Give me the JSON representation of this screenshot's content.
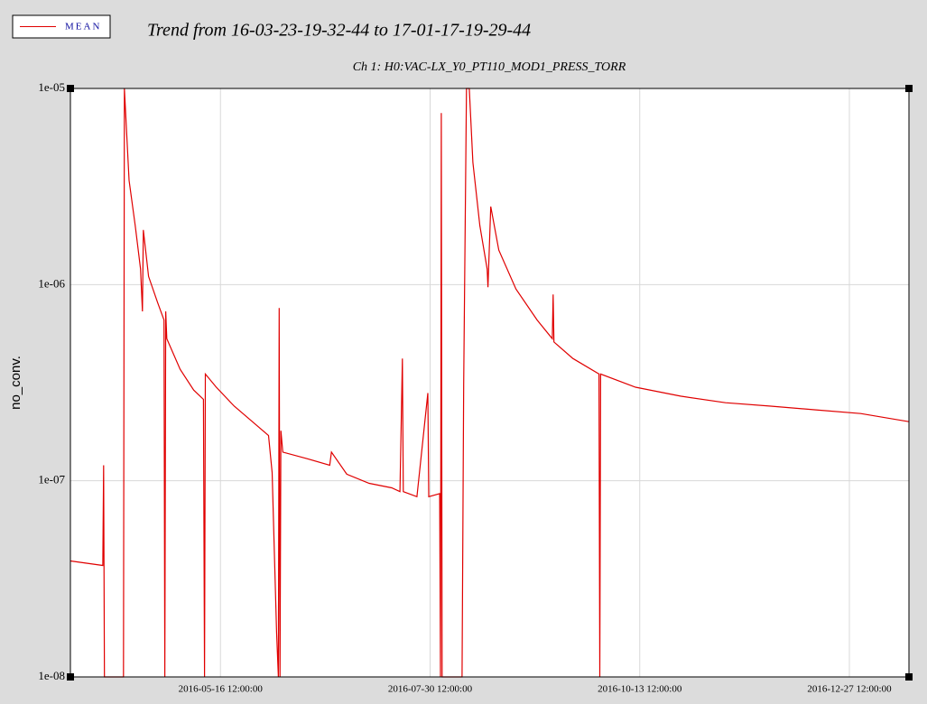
{
  "chart_data": {
    "type": "line",
    "legend_label": "MEAN",
    "title": "Trend from 16-03-23-19-32-44 to 17-01-17-19-29-44",
    "subtitle": "Ch 1: H0:VAC-LX_Y0_PT110_MOD1_PRESS_TORR",
    "y_label": "no_conv.",
    "log_y": true,
    "grid": true,
    "xlim": [
      "2016-03-23 19:32:44",
      "2017-01-17 19:29:44"
    ],
    "xticks": [
      "2016-05-16 12:00:00",
      "2016-07-30 12:00:00",
      "2016-10-13 12:00:00",
      "2016-12-27 12:00:00"
    ],
    "ylim": [
      1e-08,
      1e-05
    ],
    "yticks": [
      {
        "value": 1e-08,
        "label": "1e-08"
      },
      {
        "value": 1e-07,
        "label": "1e-07"
      },
      {
        "value": 1e-06,
        "label": "1e-06"
      },
      {
        "value": 1e-05,
        "label": "1e-05"
      }
    ],
    "x": [
      "2016-03-23 19:32:44",
      "2016-04-04 10:00:00",
      "2016-04-04 17:00:00",
      "2016-04-05 00:00:00",
      "2016-04-11 19:00:00",
      "2016-04-12 03:00:00",
      "2016-04-13 19:00:00",
      "2016-04-16 00:00:00",
      "2016-04-17 22:00:00",
      "2016-04-18 14:00:00",
      "2016-04-18 22:00:00",
      "2016-04-20 19:00:00",
      "2016-04-24 00:00:00",
      "2016-04-26 07:00:00",
      "2016-04-26 14:00:00",
      "2016-04-26 22:00:00",
      "2016-04-27 07:00:00",
      "2016-05-02 02:00:00",
      "2016-05-06 22:00:00",
      "2016-05-10 10:00:00",
      "2016-05-10 19:00:00",
      "2016-05-11 02:00:00",
      "2016-05-15 00:00:00",
      "2016-05-21 10:00:00",
      "2016-05-27 22:00:00",
      "2016-06-02 17:00:00",
      "2016-06-04 00:00:00",
      "2016-06-05 14:00:00",
      "2016-06-06 05:00:00",
      "2016-06-06 12:00:00",
      "2016-06-06 19:00:00",
      "2016-06-07 03:00:00",
      "2016-06-07 19:00:00",
      "2016-06-16 05:00:00",
      "2016-06-24 14:00:00",
      "2016-06-25 05:00:00",
      "2016-06-30 17:00:00",
      "2016-07-08 17:00:00",
      "2016-07-16 19:00:00",
      "2016-07-19 17:00:00",
      "2016-07-20 14:00:00",
      "2016-07-20 22:00:00",
      "2016-07-25 19:00:00",
      "2016-07-29 17:00:00",
      "2016-07-30 00:00:00",
      "2016-08-02 22:00:00",
      "2016-08-03 05:00:00",
      "2016-08-03 12:00:00",
      "2016-08-03 19:00:00",
      "2016-08-10 22:00:00",
      "2016-08-11 12:00:00",
      "2016-08-12 12:00:00",
      "2016-08-13 12:00:00",
      "2016-08-14 19:00:00",
      "2016-08-17 07:00:00",
      "2016-08-19 22:00:00",
      "2016-08-20 05:00:00",
      "2016-08-21 05:00:00",
      "2016-08-24 02:00:00",
      "2016-08-30 05:00:00",
      "2016-09-06 19:00:00",
      "2016-09-12 05:00:00",
      "2016-09-12 12:00:00",
      "2016-09-12 19:00:00",
      "2016-09-19 14:00:00",
      "2016-09-28 22:00:00",
      "2016-09-29 05:00:00",
      "2016-09-29 12:00:00",
      "2016-10-12 00:00:00",
      "2016-10-28 02:00:00",
      "2016-11-13 05:00:00",
      "2016-11-29 10:00:00",
      "2016-12-15 12:00:00",
      "2016-12-31 14:00:00",
      "2017-01-17 19:29:44"
    ],
    "series": [
      {
        "name": "MEAN",
        "color": "#e00000",
        "values": [
          3.9e-08,
          3.7e-08,
          1.2e-07,
          1e-08,
          1e-08,
          1e-05,
          3.4e-06,
          2e-06,
          1.2e-06,
          7.3e-07,
          1.9e-06,
          1.1e-06,
          8.1e-07,
          6.6e-07,
          1e-08,
          7.3e-07,
          5.3e-07,
          3.7e-07,
          2.9e-07,
          2.6e-07,
          1e-08,
          3.5e-07,
          3e-07,
          2.4e-07,
          2e-07,
          1.7e-07,
          1.1e-07,
          1.7e-08,
          1e-08,
          7.6e-07,
          1e-08,
          1.8e-07,
          1.4e-07,
          1.3e-07,
          1.2e-07,
          1.4e-07,
          1.08e-07,
          9.7e-08,
          9.2e-08,
          8.8e-08,
          4.2e-07,
          8.8e-08,
          8.3e-08,
          2.8e-07,
          8.3e-08,
          8.6e-08,
          1e-08,
          7.5e-06,
          1e-08,
          1e-08,
          3.1e-07,
          1e-05,
          1e-05,
          4.2e-06,
          2e-06,
          1.2e-06,
          9.7e-07,
          2.5e-06,
          1.5e-06,
          9.5e-07,
          6.6e-07,
          5.3e-07,
          8.9e-07,
          5.1e-07,
          4.2e-07,
          3.5e-07,
          1e-08,
          3.5e-07,
          3e-07,
          2.7e-07,
          2.5e-07,
          2.4e-07,
          2.3e-07,
          2.2e-07,
          2e-07
        ]
      }
    ]
  }
}
